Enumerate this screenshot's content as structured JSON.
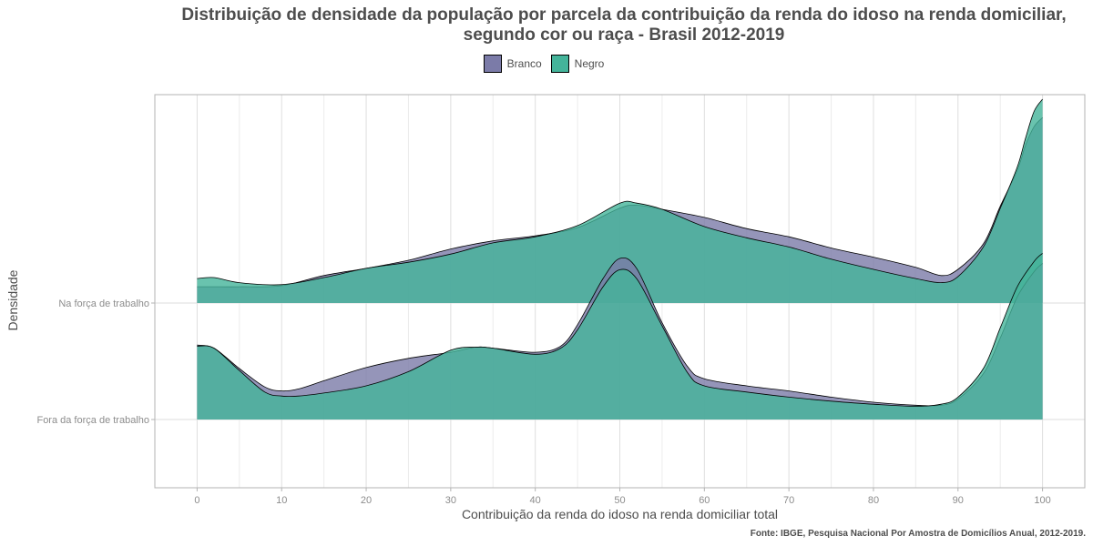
{
  "chart_data": {
    "type": "ridgeline",
    "title_line1": "Distribuição de densidade da população por parcela da contribuição da renda do idoso na renda domiciliar,",
    "title_line2": "segundo cor ou raça - Brasil 2012-2019",
    "xlabel": "Contribuição da renda do idoso na renda domiciliar total",
    "ylabel": "Densidade",
    "source": "Fonte: IBGE, Pesquisa Nacional Por Amostra de Domicílios Anual, 2012-2019.",
    "xlim": [
      -5,
      105
    ],
    "xticks": [
      0,
      10,
      20,
      30,
      40,
      50,
      60,
      70,
      80,
      90,
      100
    ],
    "categories": [
      "Na força de trabalho",
      "Fora da força de trabalho"
    ],
    "legend": {
      "position": "top",
      "items": [
        "Branco",
        "Negro"
      ]
    },
    "colors": {
      "Branco": "#7b7ba8",
      "Negro": "#44b49a"
    },
    "grid": true,
    "series": [
      {
        "category": "Na força de trabalho",
        "group": "Branco",
        "x": [
          0,
          2,
          5,
          10,
          15,
          20,
          25,
          30,
          35,
          40,
          45,
          50,
          52,
          55,
          60,
          65,
          70,
          75,
          80,
          85,
          88,
          90,
          93,
          95,
          97,
          98,
          99,
          100
        ],
        "y": [
          0.16,
          0.16,
          0.16,
          0.17,
          0.27,
          0.34,
          0.42,
          0.53,
          0.61,
          0.66,
          0.74,
          0.93,
          0.96,
          0.92,
          0.84,
          0.73,
          0.65,
          0.54,
          0.45,
          0.35,
          0.27,
          0.33,
          0.58,
          0.95,
          1.3,
          1.55,
          1.73,
          1.82
        ]
      },
      {
        "category": "Na força de trabalho",
        "group": "Negro",
        "x": [
          0,
          2,
          5,
          10,
          15,
          20,
          25,
          30,
          35,
          40,
          45,
          50,
          52,
          55,
          60,
          65,
          70,
          75,
          80,
          85,
          88,
          90,
          93,
          95,
          97,
          98,
          99,
          100
        ],
        "y": [
          0.24,
          0.25,
          0.2,
          0.18,
          0.25,
          0.34,
          0.4,
          0.48,
          0.59,
          0.65,
          0.76,
          0.98,
          0.98,
          0.92,
          0.75,
          0.64,
          0.55,
          0.43,
          0.33,
          0.24,
          0.2,
          0.26,
          0.55,
          0.93,
          1.33,
          1.62,
          1.88,
          2.0
        ]
      },
      {
        "category": "Fora da força de trabalho",
        "group": "Branco",
        "x": [
          0,
          2,
          5,
          8,
          10,
          12,
          15,
          20,
          25,
          30,
          33,
          35,
          40,
          43,
          45,
          48,
          50,
          52,
          55,
          58,
          60,
          65,
          70,
          75,
          80,
          85,
          88,
          90,
          93,
          95,
          97,
          99,
          100
        ],
        "y": [
          0.73,
          0.7,
          0.5,
          0.32,
          0.28,
          0.3,
          0.38,
          0.51,
          0.6,
          0.66,
          0.71,
          0.7,
          0.66,
          0.72,
          0.93,
          1.38,
          1.58,
          1.48,
          0.95,
          0.52,
          0.4,
          0.33,
          0.28,
          0.22,
          0.17,
          0.14,
          0.14,
          0.2,
          0.45,
          0.8,
          1.2,
          1.45,
          1.53
        ]
      },
      {
        "category": "Fora da força de trabalho",
        "group": "Negro",
        "x": [
          0,
          2,
          5,
          8,
          10,
          12,
          15,
          20,
          25,
          30,
          33,
          35,
          40,
          43,
          45,
          48,
          50,
          52,
          55,
          58,
          60,
          65,
          70,
          75,
          80,
          85,
          88,
          90,
          93,
          95,
          97,
          99,
          100
        ],
        "y": [
          0.72,
          0.7,
          0.48,
          0.27,
          0.23,
          0.23,
          0.26,
          0.33,
          0.47,
          0.68,
          0.71,
          0.7,
          0.64,
          0.7,
          0.88,
          1.3,
          1.47,
          1.38,
          0.92,
          0.46,
          0.33,
          0.27,
          0.22,
          0.18,
          0.15,
          0.13,
          0.15,
          0.22,
          0.5,
          0.9,
          1.3,
          1.55,
          1.63
        ]
      }
    ]
  }
}
